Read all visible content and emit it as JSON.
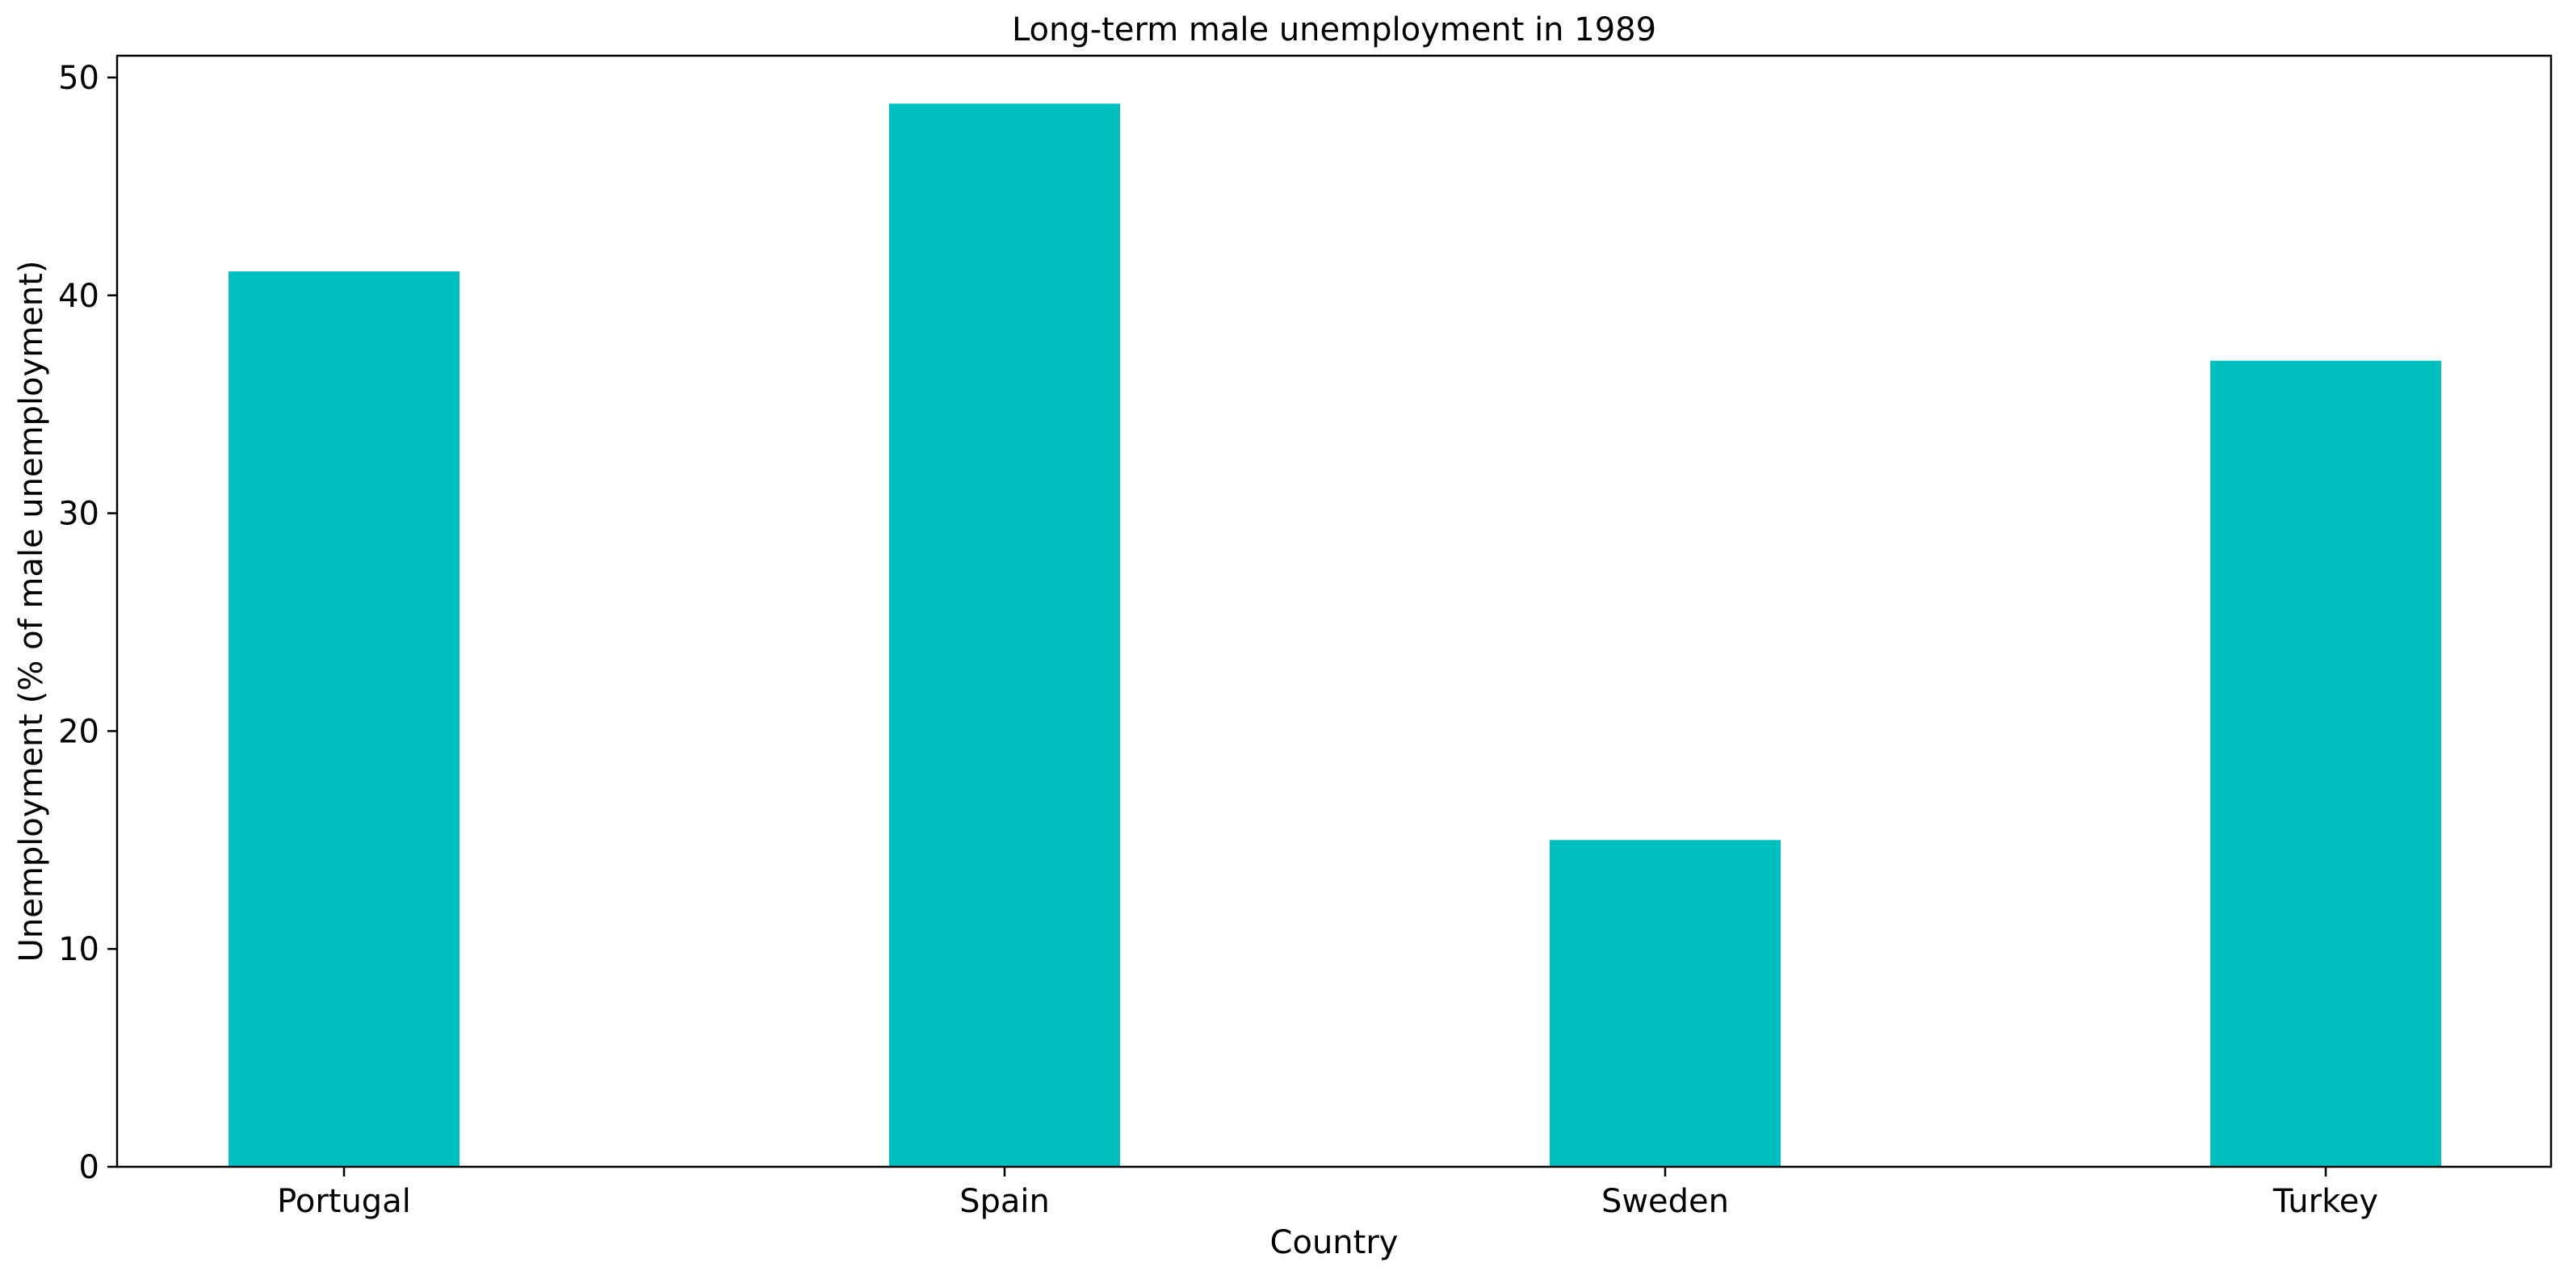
{
  "chart_data": {
    "type": "bar",
    "title": "Long-term male unemployment in 1989",
    "xlabel": "Country",
    "ylabel": "Unemployment (% of male unemployment)",
    "categories": [
      "Portugal",
      "Spain",
      "Sweden",
      "Turkey"
    ],
    "values": [
      41.1,
      48.8,
      15.0,
      37.0
    ],
    "ylim": [
      0,
      51
    ],
    "yticks": [
      0,
      10,
      20,
      30,
      40,
      50
    ],
    "bar_color": "#00bfbf",
    "grid": false,
    "legend": "none"
  }
}
